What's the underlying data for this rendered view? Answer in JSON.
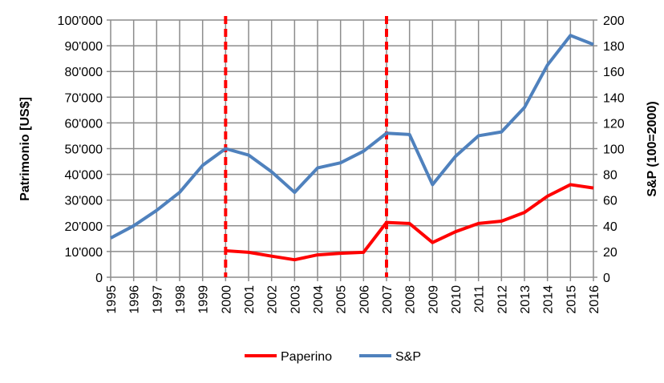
{
  "chart_data": {
    "type": "line",
    "title": "",
    "x": [
      "1995",
      "1996",
      "1997",
      "1998",
      "1999",
      "2000",
      "2001",
      "2002",
      "2003",
      "2004",
      "2005",
      "2006",
      "2007",
      "2008",
      "2009",
      "2010",
      "2011",
      "2012",
      "2013",
      "2014",
      "2015",
      "2016"
    ],
    "ylabel": "Patrimonio [US$]",
    "ylabel_right": "S&P (100=2000)",
    "ylim": [
      0,
      100000
    ],
    "ylim_right": [
      0,
      200
    ],
    "yticks": [
      "0",
      "10'000",
      "20'000",
      "30'000",
      "40'000",
      "50'000",
      "60'000",
      "70'000",
      "80'000",
      "90'000",
      "100'000"
    ],
    "yticks_right": [
      "0",
      "20",
      "40",
      "60",
      "80",
      "100",
      "120",
      "140",
      "160",
      "180",
      "200"
    ],
    "grid": true,
    "legend_position": "bottom",
    "series": [
      {
        "name": "Paperino",
        "axis": "left",
        "color": "#ff0000",
        "values": [
          null,
          null,
          null,
          null,
          null,
          10300,
          9700,
          8200,
          6800,
          8700,
          9300,
          9700,
          21300,
          20900,
          13500,
          17700,
          20900,
          21800,
          25200,
          31500,
          36000,
          34700
        ]
      },
      {
        "name": "S&P",
        "axis": "right",
        "color": "#4f81bd",
        "values": [
          30.5,
          40,
          52,
          66,
          87,
          100,
          95,
          82,
          66,
          85,
          89,
          98,
          112,
          111,
          72,
          94,
          110,
          113,
          132,
          165,
          188,
          181
        ]
      }
    ],
    "vertical_markers": [
      {
        "x": "2000",
        "color": "#ff0000",
        "style": "dashed"
      },
      {
        "x": "2007",
        "color": "#ff0000",
        "style": "dashed"
      }
    ]
  }
}
